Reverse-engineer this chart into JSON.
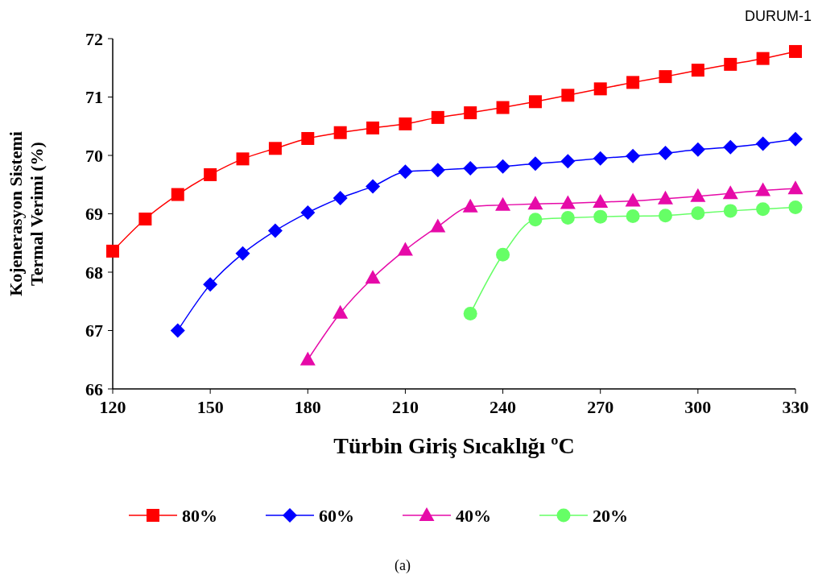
{
  "chart_data": {
    "type": "line",
    "title": "DURUM-1",
    "xlabel": "Türbin Giriş Sıcaklığı ºC",
    "ylabel": "Kojenerasyon Sistemi\nTermal Verimi (%)",
    "annotations": [
      "(a)"
    ],
    "xlim": [
      120,
      330
    ],
    "xticks": [
      120,
      150,
      180,
      210,
      240,
      270,
      300,
      330
    ],
    "ylim": [
      66,
      72
    ],
    "yticks": [
      66,
      67,
      68,
      69,
      70,
      71,
      72
    ],
    "grid": false,
    "legend": "bottom",
    "series": [
      {
        "name": "80%",
        "color": "#ff0000",
        "marker": "square",
        "x": [
          120,
          130,
          140,
          150,
          160,
          170,
          180,
          190,
          200,
          210,
          220,
          230,
          240,
          250,
          260,
          270,
          280,
          290,
          300,
          310,
          320,
          330
        ],
        "values": [
          68.36,
          68.91,
          69.33,
          69.67,
          69.94,
          70.12,
          70.29,
          70.39,
          70.47,
          70.54,
          70.65,
          70.73,
          70.82,
          70.92,
          71.03,
          71.14,
          71.25,
          71.35,
          71.46,
          71.56,
          71.66,
          71.78
        ]
      },
      {
        "name": "60%",
        "color": "#0000ff",
        "marker": "diamond",
        "x": [
          140,
          150,
          160,
          170,
          180,
          190,
          200,
          210,
          220,
          230,
          240,
          250,
          260,
          270,
          280,
          290,
          300,
          310,
          320,
          330
        ],
        "values": [
          67.0,
          67.79,
          68.32,
          68.71,
          69.02,
          69.27,
          69.47,
          69.72,
          69.75,
          69.78,
          69.81,
          69.86,
          69.9,
          69.95,
          69.99,
          70.04,
          70.1,
          70.14,
          70.2,
          70.28
        ]
      },
      {
        "name": "40%",
        "color": "#e60aa8",
        "marker": "triangle",
        "x": [
          180,
          190,
          200,
          210,
          220,
          230,
          240,
          250,
          260,
          270,
          280,
          290,
          300,
          310,
          320,
          330
        ],
        "values": [
          66.5,
          67.3,
          67.9,
          68.38,
          68.78,
          69.12,
          69.15,
          69.17,
          69.18,
          69.2,
          69.22,
          69.26,
          69.3,
          69.35,
          69.4,
          69.43
        ]
      },
      {
        "name": "20%",
        "color": "#66ff66",
        "marker": "circle",
        "x": [
          230,
          240,
          250,
          260,
          270,
          280,
          290,
          300,
          310,
          320,
          330
        ],
        "values": [
          67.29,
          68.3,
          68.9,
          68.93,
          68.95,
          68.96,
          68.97,
          69.01,
          69.05,
          69.08,
          69.11
        ]
      }
    ]
  }
}
